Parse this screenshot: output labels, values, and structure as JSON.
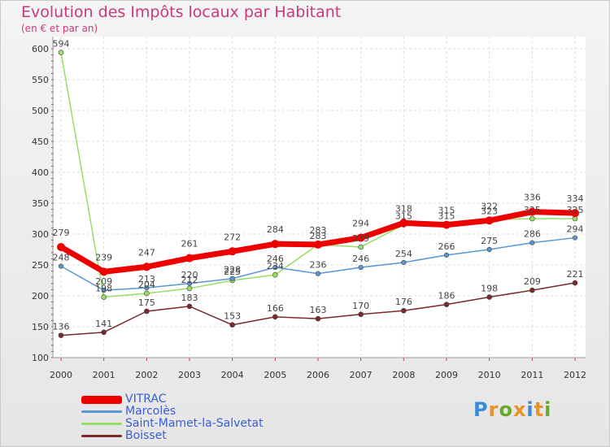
{
  "chart_data": {
    "type": "line",
    "title": "Evolution des Impôts locaux par Habitant",
    "subtitle": "(en € et par an)",
    "xlabel": "",
    "ylabel": "",
    "x": [
      "2000",
      "2001",
      "2002",
      "2003",
      "2004",
      "2005",
      "2006",
      "2007",
      "2008",
      "2009",
      "2010",
      "2011",
      "2012"
    ],
    "ylim": [
      100,
      600
    ],
    "yticks": [
      100,
      150,
      200,
      250,
      300,
      350,
      400,
      450,
      500,
      550,
      600
    ],
    "grid": true,
    "series": [
      {
        "name": "VITRAC",
        "color": "#ee0000",
        "values": [
          279,
          239,
          247,
          261,
          272,
          284,
          283,
          294,
          318,
          315,
          322,
          336,
          334
        ]
      },
      {
        "name": "Marcolès",
        "color": "#5a96d2",
        "values": [
          248,
          209,
          213,
          220,
          228,
          246,
          236,
          246,
          254,
          266,
          275,
          286,
          294
        ]
      },
      {
        "name": "Saint-Mamet-la-Salvetat",
        "color": "#99dd66",
        "values": [
          594,
          198,
          204,
          212,
          225,
          234,
          283,
          279,
          315,
          315,
          323,
          325,
          325
        ]
      },
      {
        "name": "Boisset",
        "color": "#7a2a2a",
        "values": [
          136,
          141,
          175,
          183,
          153,
          166,
          163,
          170,
          176,
          186,
          198,
          209,
          221
        ]
      }
    ]
  },
  "brand": {
    "text": "Proxiti",
    "colors": [
      "#3a8ad6",
      "#e8922a",
      "#6aa82a",
      "#e8922a",
      "#3a8ad6",
      "#e8922a",
      "#6aa82a"
    ]
  }
}
